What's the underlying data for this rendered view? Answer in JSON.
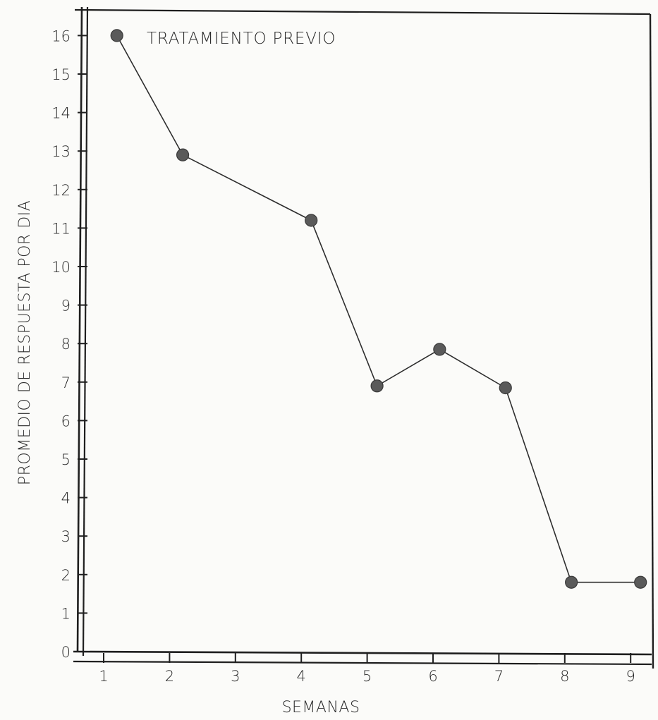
{
  "chart_data": {
    "type": "line",
    "title": "",
    "xlabel": "SEMANAS",
    "ylabel": "PROMEDIO DE RESPUESTA POR DIA",
    "x_ticks": [
      "1",
      "2",
      "3",
      "4",
      "5",
      "6",
      "7",
      "8",
      "9"
    ],
    "y_ticks": [
      "0",
      "1",
      "2",
      "3",
      "4",
      "5",
      "6",
      "7",
      "8",
      "9",
      "10",
      "11",
      "12",
      "13",
      "14",
      "15",
      "16"
    ],
    "xlim": [
      0.55,
      9.3
    ],
    "ylim": [
      0,
      16.5
    ],
    "grid": false,
    "series": [
      {
        "x": [
          1.2,
          2.2,
          4.15,
          5.15,
          6.1,
          7.1,
          8.1,
          9.15
        ],
        "y": [
          16,
          12.9,
          11.2,
          6.9,
          7.85,
          6.85,
          1.8,
          1.8
        ]
      }
    ],
    "annotation": "TRATAMIENTO PREVIO",
    "colors": {
      "line": "#2e2e2e",
      "marker": "#5a5a5a",
      "axis": "#1f1f1f"
    }
  }
}
